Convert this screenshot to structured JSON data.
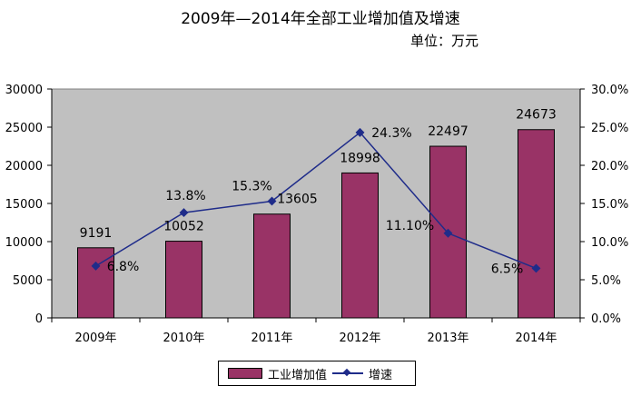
{
  "title": "2009年—2014年全部工业增加值及增速",
  "unit": "单位：万元",
  "legend": {
    "bar_label": "工业增加值",
    "line_label": "增速"
  },
  "chart_data": {
    "type": "bar",
    "categories": [
      "2009年",
      "2010年",
      "2011年",
      "2012年",
      "2013年",
      "2014年"
    ],
    "series": [
      {
        "name": "工业增加值",
        "type": "bar",
        "axis": "left",
        "values": [
          9191,
          10052,
          13605,
          18998,
          22497,
          24673
        ],
        "labels": [
          "9191",
          "10052",
          "13605",
          "18998",
          "22497",
          "24673"
        ],
        "color": "#993366"
      },
      {
        "name": "增速",
        "type": "line",
        "axis": "right",
        "values": [
          6.8,
          13.8,
          15.3,
          24.3,
          11.1,
          6.5
        ],
        "labels": [
          "6.8%",
          "13.8%",
          "15.3%",
          "24.3%",
          "11.10%",
          "6.5%"
        ],
        "color": "#1f2c8a"
      }
    ],
    "y_left": {
      "min": 0,
      "max": 30000,
      "ticks": [
        "0",
        "5000",
        "10000",
        "15000",
        "20000",
        "25000",
        "30000"
      ]
    },
    "y_right": {
      "min": 0,
      "max": 30,
      "ticks": [
        "0.0%",
        "5.0%",
        "10.0%",
        "15.0%",
        "20.0%",
        "25.0%",
        "30.0%"
      ]
    },
    "plot_background": "#c0c0c0",
    "grid": false,
    "legend_position": "bottom"
  }
}
